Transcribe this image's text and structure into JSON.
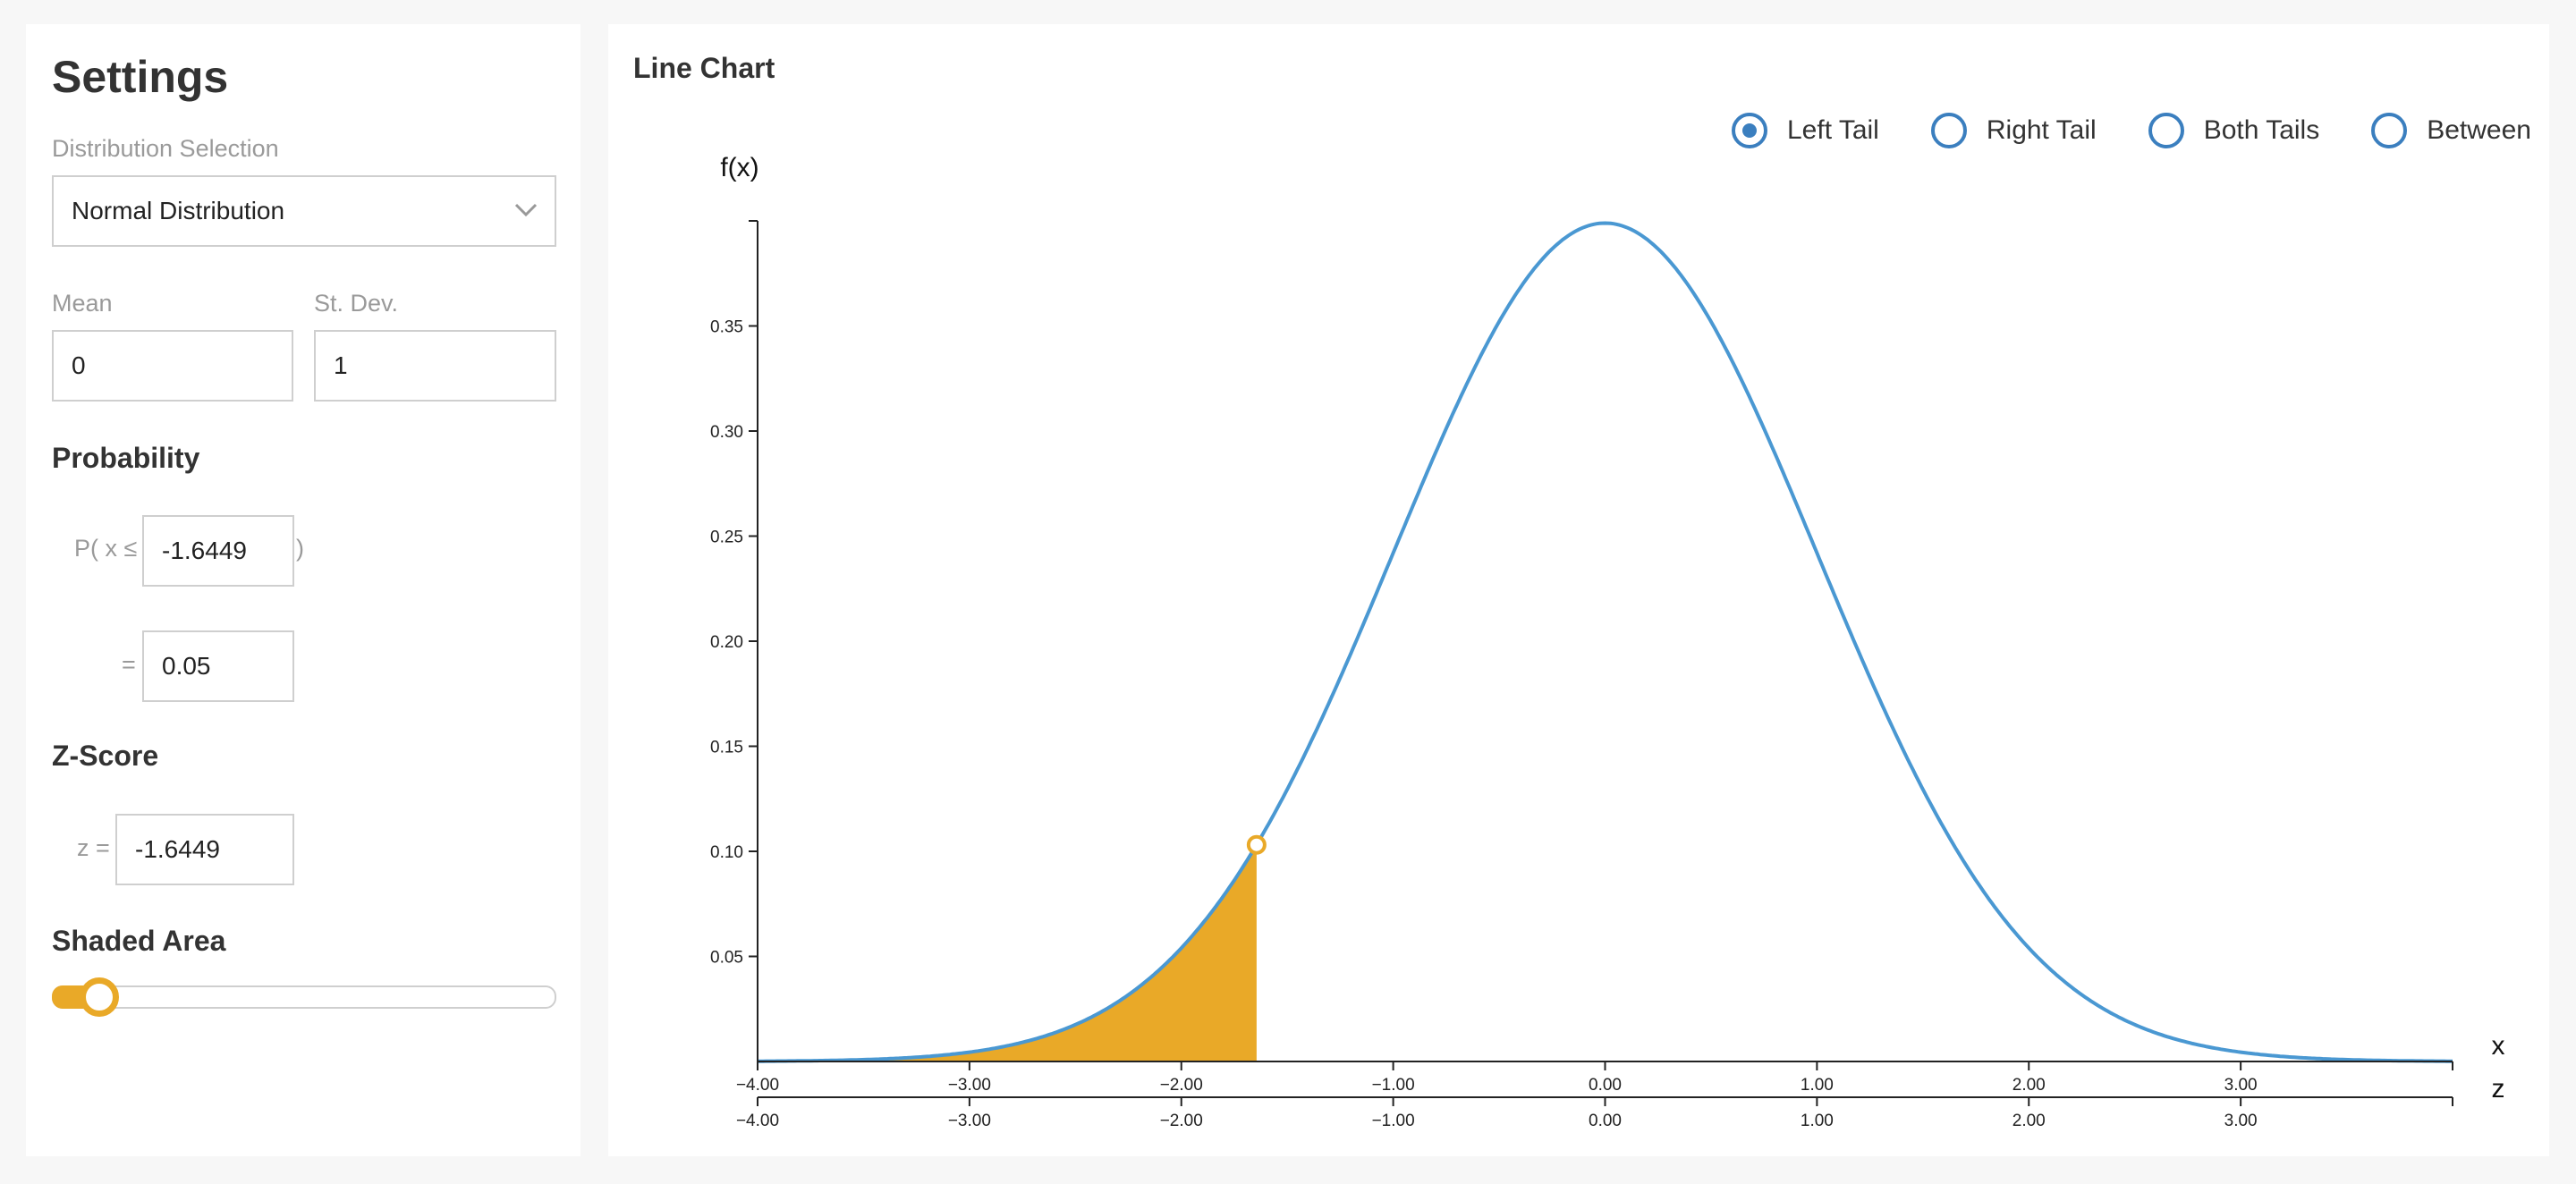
{
  "settings": {
    "title": "Settings",
    "distribution_label": "Distribution Selection",
    "distribution_value": "Normal Distribution",
    "mean_label": "Mean",
    "mean_value": "0",
    "sd_label": "St. Dev.",
    "sd_value": "1",
    "probability_heading": "Probability",
    "prob_prefix": "P( x ≤",
    "prob_x_value": "-1.6449",
    "prob_suffix": ")",
    "equals_label": "=",
    "prob_value": "0.05",
    "zscore_heading": "Z-Score",
    "z_label": "z =",
    "z_value": "-1.6449",
    "shaded_heading": "Shaded Area",
    "shaded_fraction": 0.05
  },
  "chart": {
    "title": "Line Chart",
    "tail_options": [
      {
        "label": "Left Tail",
        "checked": true
      },
      {
        "label": "Right Tail",
        "checked": false
      },
      {
        "label": "Both Tails",
        "checked": false
      },
      {
        "label": "Between",
        "checked": false
      }
    ]
  },
  "colors": {
    "curve": "#4a98d2",
    "shade": "#e9a928",
    "radio": "#3b7fbf",
    "axis": "#222222"
  },
  "chart_data": {
    "type": "area",
    "distribution": "normal",
    "mean": 0,
    "sd": 1,
    "ylabel": "f(x)",
    "xlabel": "x",
    "zlabel": "z",
    "xlim": [
      -4,
      4
    ],
    "ylim": [
      0,
      0.4
    ],
    "x_ticks": [
      "−4.00",
      "−3.00",
      "−2.00",
      "−1.00",
      "0.00",
      "1.00",
      "2.00",
      "3.00"
    ],
    "z_ticks": [
      "−4.00",
      "−3.00",
      "−2.00",
      "−1.00",
      "0.00",
      "1.00",
      "2.00",
      "3.00"
    ],
    "y_ticks": [
      "0.05",
      "0.10",
      "0.15",
      "0.20",
      "0.25",
      "0.30",
      "0.35"
    ],
    "shaded_region": {
      "tail": "left",
      "from": -4,
      "to": -1.6449
    },
    "marker": {
      "x": -1.6449,
      "y": 0.1031
    }
  }
}
